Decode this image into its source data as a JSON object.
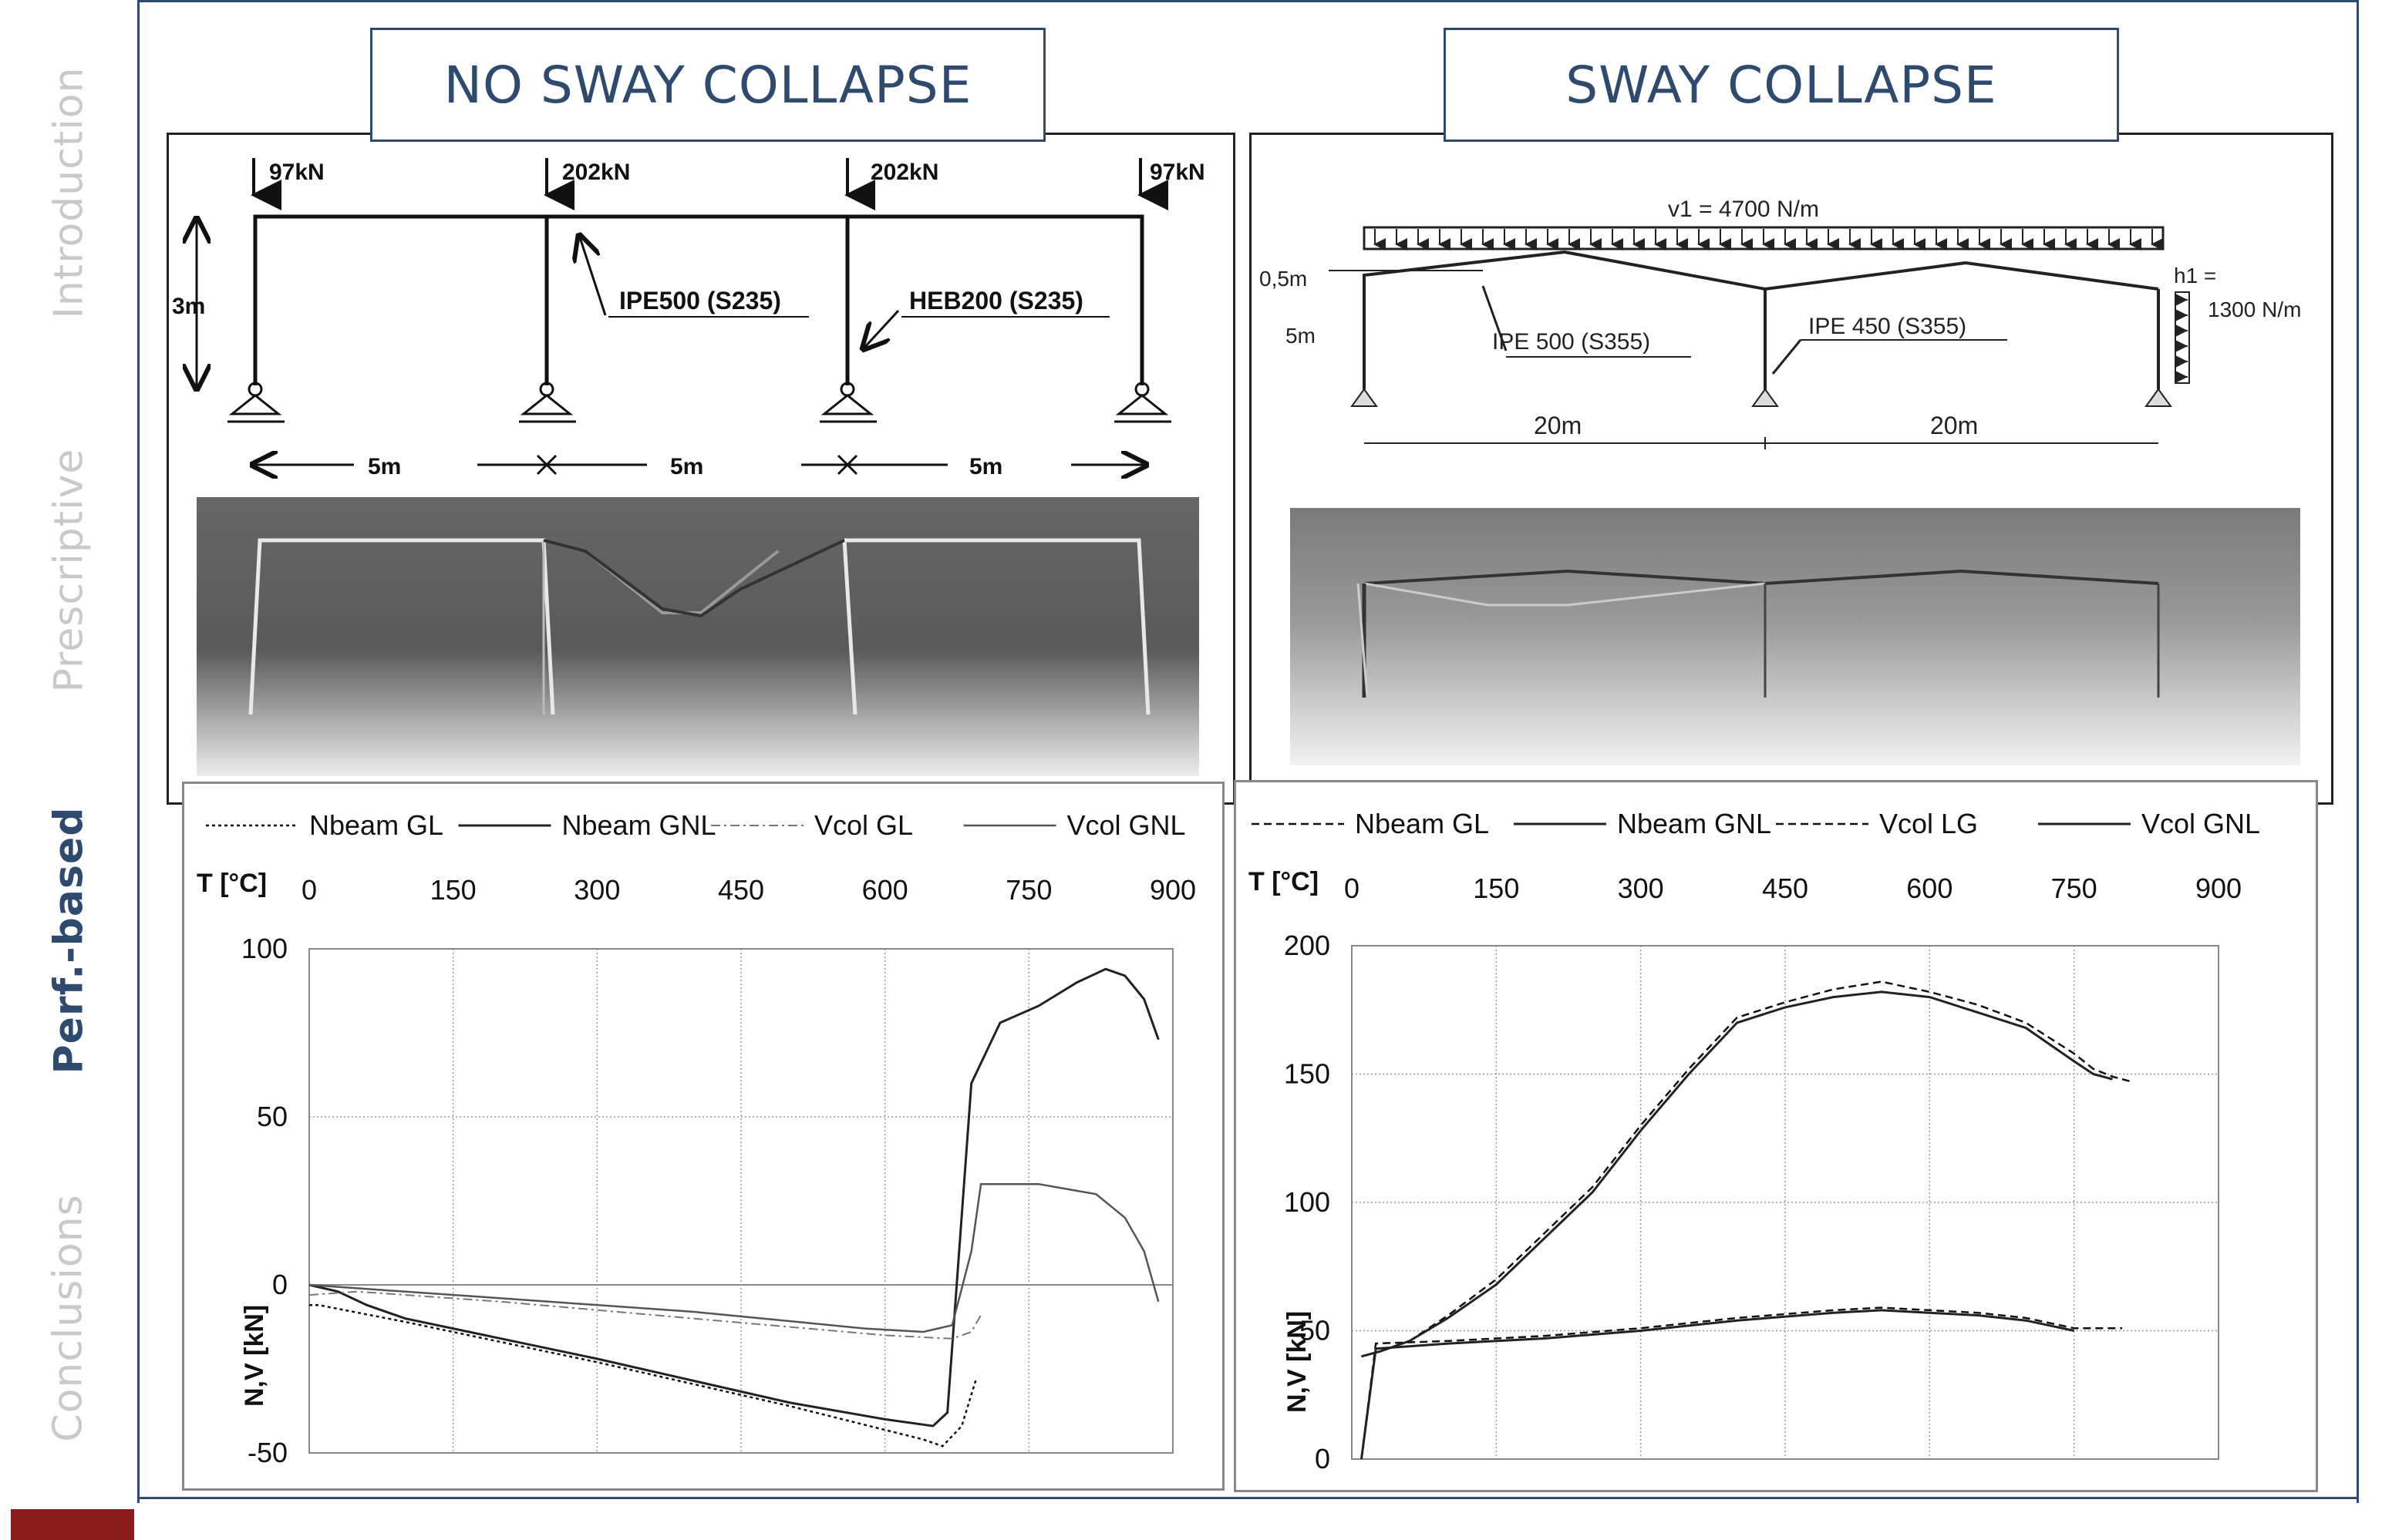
{
  "sidebar": {
    "items": [
      {
        "label": "Introduction",
        "active": false
      },
      {
        "label": "Prescriptive",
        "active": false
      },
      {
        "label": "Perf.-based",
        "active": true
      },
      {
        "label": "Conclusions",
        "active": false
      }
    ]
  },
  "headers": {
    "left": "NO SWAY COLLAPSE",
    "right": "SWAY COLLAPSE"
  },
  "left_diagram": {
    "loads": [
      "97kN",
      "202kN",
      "202kN",
      "97kN"
    ],
    "height_label": "3m",
    "spans": [
      "5m",
      "5m",
      "5m"
    ],
    "beam_label": "IPE500 (S235)",
    "column_label": "HEB200 (S235)"
  },
  "right_diagram": {
    "load_label": "v1 = 4700 N/m",
    "rise_label": "0,5m",
    "height_label": "5m",
    "beam_label": "IPE 500 (S355)",
    "column_label": "IPE 450 (S355)",
    "wind_label_1": "h1 =",
    "wind_label_2": "1300 N/m",
    "spans": [
      "20m",
      "20m"
    ]
  },
  "chart_data": [
    {
      "type": "line",
      "xlabel": "T [°C]",
      "ylabel": "N,V [kN]",
      "xlim": [
        0,
        900
      ],
      "ylim": [
        -50,
        100
      ],
      "x_ticks": [
        0,
        150,
        300,
        450,
        600,
        750,
        900
      ],
      "y_ticks": [
        -50,
        0,
        50,
        100
      ],
      "grid": true,
      "legend_position": "top",
      "series": [
        {
          "name": "Nbeam GL",
          "style": "dotted",
          "x": [
            0,
            10,
            100,
            300,
            500,
            640,
            660,
            680,
            695
          ],
          "y": [
            -6,
            -6,
            -11,
            -23,
            -36,
            -46,
            -48,
            -42,
            -28
          ]
        },
        {
          "name": "Nbeam GNL",
          "style": "solid",
          "x": [
            0,
            30,
            60,
            100,
            300,
            500,
            600,
            650,
            665,
            690,
            720,
            760,
            800,
            830,
            850,
            870,
            885
          ],
          "y": [
            0,
            -2,
            -6,
            -10,
            -22,
            -35,
            -40,
            -42,
            -38,
            60,
            78,
            83,
            90,
            94,
            92,
            85,
            73
          ]
        },
        {
          "name": "Vcol GL",
          "style": "dashdot",
          "x": [
            0,
            50,
            200,
            400,
            600,
            670,
            690,
            700
          ],
          "y": [
            -3,
            -2,
            -5,
            -10,
            -15,
            -16,
            -14,
            -9
          ]
        },
        {
          "name": "Vcol GNL",
          "style": "solid-grey",
          "x": [
            0,
            50,
            200,
            400,
            580,
            640,
            670,
            690,
            700,
            760,
            820,
            850,
            870,
            885
          ],
          "y": [
            0,
            -1,
            -4,
            -8,
            -13,
            -14,
            -12,
            10,
            30,
            30,
            27,
            20,
            10,
            -5
          ]
        }
      ]
    },
    {
      "type": "line",
      "xlabel": "T [°C]",
      "ylabel": "N,V [kN]",
      "xlim": [
        0,
        900
      ],
      "ylim": [
        0,
        200
      ],
      "x_ticks": [
        0,
        150,
        300,
        450,
        600,
        750,
        900
      ],
      "y_ticks": [
        0,
        50,
        100,
        150,
        200
      ],
      "grid": true,
      "legend_position": "top",
      "series": [
        {
          "name": "Nbeam GL",
          "style": "dashed",
          "x": [
            10,
            30,
            60,
            100,
            150,
            200,
            250,
            300,
            350,
            400,
            450,
            500,
            550,
            600,
            650,
            700,
            750,
            770,
            790,
            810
          ],
          "y": [
            40,
            42,
            46,
            56,
            70,
            88,
            106,
            130,
            152,
            172,
            178,
            183,
            186,
            182,
            177,
            170,
            158,
            152,
            149,
            147
          ]
        },
        {
          "name": "Nbeam GNL",
          "style": "solid",
          "x": [
            10,
            30,
            60,
            100,
            150,
            200,
            250,
            300,
            350,
            400,
            450,
            500,
            550,
            600,
            650,
            700,
            750,
            770,
            790
          ],
          "y": [
            40,
            42,
            46,
            55,
            68,
            86,
            104,
            128,
            150,
            170,
            176,
            180,
            182,
            180,
            174,
            168,
            155,
            150,
            148
          ]
        },
        {
          "name": "Vcol LG",
          "style": "dashed",
          "x": [
            10,
            25,
            100,
            200,
            300,
            400,
            500,
            550,
            600,
            650,
            700,
            750,
            800
          ],
          "y": [
            0,
            45,
            46,
            48,
            51,
            55,
            58,
            59,
            58,
            57,
            55,
            51,
            51
          ]
        },
        {
          "name": "Vcol GNL",
          "style": "solid",
          "x": [
            10,
            25,
            100,
            200,
            300,
            400,
            500,
            550,
            600,
            650,
            700,
            750
          ],
          "y": [
            0,
            43,
            45,
            47,
            50,
            54,
            57,
            58,
            57,
            56,
            54,
            50
          ]
        }
      ]
    }
  ]
}
